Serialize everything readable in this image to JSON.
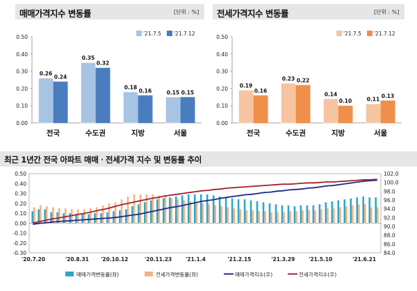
{
  "chart_data": [
    {
      "type": "bar",
      "title": "매매가격지수 변동률",
      "unit": "[단위 : %]",
      "categories": [
        "전국",
        "수도권",
        "지방",
        "서울"
      ],
      "series": [
        {
          "name": "'21.7.5",
          "values": [
            0.26,
            0.35,
            0.18,
            0.15
          ],
          "color": "#a8c4e4"
        },
        {
          "name": "'21.7.12",
          "values": [
            0.24,
            0.32,
            0.16,
            0.15
          ],
          "color": "#4a7cc0"
        }
      ],
      "yticks": [
        "0.50",
        "0.40",
        "0.30",
        "0.20",
        "0.10",
        "0.00"
      ],
      "ylim": [
        0,
        0.5
      ]
    },
    {
      "type": "bar",
      "title": "전세가격지수 변동률",
      "unit": "[단위 : %]",
      "categories": [
        "전국",
        "수도권",
        "지방",
        "서울"
      ],
      "series": [
        {
          "name": "'21.7.5",
          "values": [
            0.19,
            0.23,
            0.14,
            0.11
          ],
          "color": "#f6c4a0"
        },
        {
          "name": "'21.7.12",
          "values": [
            0.16,
            0.22,
            0.1,
            0.13
          ],
          "color": "#ef8f4a"
        }
      ],
      "yticks": [
        "0.50",
        "0.40",
        "0.30",
        "0.20",
        "0.10",
        "0.00"
      ],
      "ylim": [
        0,
        0.5
      ]
    },
    {
      "type": "bar",
      "title": "최근 1년간 전국 아파트 매매ㆍ전세가격 지수 및 변동률 추이",
      "left_ticks": [
        "0.50",
        "0.40",
        "0.30",
        "0.20",
        "0.10",
        "0.00",
        "-0.10",
        "-0.20",
        "-0.30"
      ],
      "right_ticks": [
        "102.0",
        "100.0",
        "98.0",
        "96.0",
        "94.0",
        "92.0",
        "90.0",
        "88.0",
        "86.0",
        "84.0"
      ],
      "ylim_left": [
        -0.3,
        0.5
      ],
      "ylim_right": [
        84,
        102
      ],
      "x_ticks": [
        "'20.7.20",
        "'20.8.31",
        "'20.10.12",
        "'20.11.23",
        "'21.1.4",
        "'21.2.15",
        "'21.3.29",
        "'21.5.10",
        "'21.6.21"
      ],
      "series": [
        {
          "name": "매매가격변동률(좌)",
          "type": "bar",
          "color": "#2fa6c9",
          "values": [
            0.12,
            0.14,
            0.14,
            0.11,
            0.11,
            0.1,
            0.1,
            0.09,
            0.09,
            0.09,
            0.1,
            0.1,
            0.11,
            0.12,
            0.13,
            0.14,
            0.17,
            0.19,
            0.21,
            0.23,
            0.24,
            0.25,
            0.26,
            0.27,
            0.28,
            0.29,
            0.29,
            0.29,
            0.29,
            0.28,
            0.27,
            0.26,
            0.25,
            0.24,
            0.24,
            0.23,
            0.22,
            0.21,
            0.2,
            0.19,
            0.18,
            0.18,
            0.17,
            0.18,
            0.18,
            0.18,
            0.19,
            0.21,
            0.22,
            0.23,
            0.24,
            0.25,
            0.26,
            0.27,
            0.26,
            0.26
          ]
        },
        {
          "name": "전세가격변동률(좌)",
          "type": "bar",
          "color": "#f3b184",
          "values": [
            0.16,
            0.18,
            0.17,
            0.16,
            0.15,
            0.15,
            0.14,
            0.14,
            0.14,
            0.15,
            0.16,
            0.18,
            0.2,
            0.21,
            0.24,
            0.27,
            0.29,
            0.29,
            0.29,
            0.29,
            0.28,
            0.27,
            0.25,
            0.24,
            0.23,
            0.22,
            0.21,
            0.2,
            0.19,
            0.18,
            0.17,
            0.16,
            0.15,
            0.14,
            0.13,
            0.13,
            0.12,
            0.12,
            0.11,
            0.11,
            0.11,
            0.12,
            0.12,
            0.13,
            0.13,
            0.13,
            0.14,
            0.15,
            0.15,
            0.16,
            0.17,
            0.18,
            0.19,
            0.19,
            0.16,
            0.16
          ]
        },
        {
          "name": "매매가격지수(우)",
          "type": "line",
          "color": "#1b2a8c",
          "values": [
            90.5,
            90.7,
            90.8,
            91.0,
            91.1,
            91.2,
            91.3,
            91.4,
            91.5,
            91.6,
            91.7,
            91.8,
            91.9,
            92.0,
            92.2,
            92.4,
            92.6,
            92.8,
            93.1,
            93.4,
            93.7,
            94.0,
            94.3,
            94.5,
            94.8,
            95.1,
            95.4,
            95.7,
            95.9,
            96.1,
            96.4,
            96.6,
            96.8,
            97.0,
            97.2,
            97.3,
            97.5,
            97.7,
            97.8,
            98.0,
            98.1,
            98.3,
            98.4,
            98.5,
            98.7,
            98.8,
            99.0,
            99.2,
            99.3,
            99.5,
            99.7,
            99.9,
            100.1,
            100.3,
            100.4,
            100.5
          ]
        },
        {
          "name": "전세가격지수(우)",
          "type": "line",
          "color": "#a5202a",
          "values": [
            90.8,
            91.1,
            91.4,
            91.7,
            91.9,
            92.2,
            92.4,
            92.7,
            92.9,
            93.2,
            93.5,
            93.8,
            94.1,
            94.5,
            94.9,
            95.2,
            95.5,
            95.8,
            96.1,
            96.4,
            96.6,
            96.9,
            97.1,
            97.3,
            97.5,
            97.7,
            97.9,
            98.1,
            98.2,
            98.4,
            98.5,
            98.7,
            98.8,
            98.9,
            99.0,
            99.1,
            99.2,
            99.3,
            99.4,
            99.5,
            99.6,
            99.6,
            99.7,
            99.8,
            99.9,
            99.9,
            100.0,
            100.1,
            100.1,
            100.2,
            100.3,
            100.4,
            100.5,
            100.6,
            100.6,
            100.7
          ]
        }
      ]
    }
  ]
}
